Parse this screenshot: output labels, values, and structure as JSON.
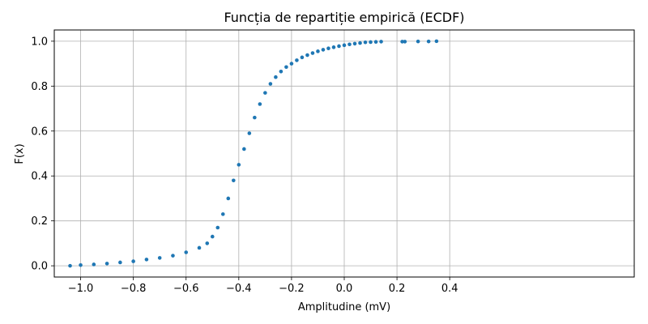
{
  "chart_data": {
    "type": "scatter",
    "title": "Funcția de repartiție empirică (ECDF)",
    "xlabel": "Amplitudine (mV)",
    "ylabel": "F(x)",
    "xlim": [
      -1.1,
      1.1
    ],
    "ylim": [
      -0.05,
      1.05
    ],
    "x_ticks": [
      -1.0,
      -0.8,
      -0.6,
      -0.4,
      -0.2,
      0.0,
      0.2,
      0.4
    ],
    "x_tick_labels": [
      "−1.0",
      "−0.8",
      "−0.6",
      "−0.4",
      "−0.2",
      "0.0",
      "0.2",
      "0.4"
    ],
    "y_ticks": [
      0.0,
      0.2,
      0.4,
      0.6,
      0.8,
      1.0
    ],
    "y_tick_labels": [
      "0.0",
      "0.2",
      "0.4",
      "0.6",
      "0.8",
      "1.0"
    ],
    "grid": true,
    "marker_color": "#1f77b4",
    "series": [
      {
        "x": [
          -1.04,
          -1.0,
          -0.95,
          -0.9,
          -0.85,
          -0.8,
          -0.75,
          -0.7,
          -0.65,
          -0.6,
          -0.55,
          -0.52,
          -0.5,
          -0.48,
          -0.46,
          -0.44,
          -0.42,
          -0.4,
          -0.38,
          -0.36,
          -0.34,
          -0.32,
          -0.3,
          -0.28,
          -0.26,
          -0.24,
          -0.22,
          -0.2,
          -0.18,
          -0.16,
          -0.14,
          -0.12,
          -0.1,
          -0.08,
          -0.06,
          -0.04,
          -0.02,
          0.0,
          0.02,
          0.04,
          0.06,
          0.08,
          0.1,
          0.12,
          0.14,
          0.22,
          0.23,
          0.28,
          0.32,
          0.35
        ],
        "y": [
          0.0,
          0.003,
          0.006,
          0.01,
          0.015,
          0.02,
          0.028,
          0.035,
          0.045,
          0.06,
          0.08,
          0.1,
          0.13,
          0.17,
          0.23,
          0.3,
          0.38,
          0.45,
          0.52,
          0.59,
          0.66,
          0.72,
          0.77,
          0.81,
          0.84,
          0.865,
          0.885,
          0.9,
          0.915,
          0.928,
          0.938,
          0.947,
          0.955,
          0.962,
          0.968,
          0.973,
          0.978,
          0.982,
          0.986,
          0.989,
          0.992,
          0.995,
          0.996,
          0.997,
          0.998,
          0.998,
          0.998,
          0.999,
          0.999,
          1.0
        ]
      }
    ]
  }
}
